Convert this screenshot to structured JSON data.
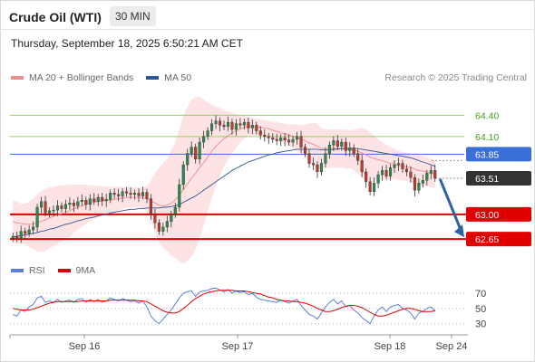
{
  "header": {
    "title": "Crude Oil (WTI)",
    "interval": "30 MIN",
    "timestamp": "Thursday, September 18, 2025 6:50:21 AM CET"
  },
  "legend": {
    "ma20_label": "MA 20 + Bollinger Bands",
    "ma50_label": "MA 50",
    "credit": "Research © 2025 Trading Central"
  },
  "rsi_legend": {
    "rsi_label": "RSI",
    "ma_label": "9MA"
  },
  "colors": {
    "ma20": "#f08b8b",
    "bollinger_fill": "#fde0e0",
    "ma50": "#2f5597",
    "candle_up": "#2a8c4a",
    "candle_down": "#c0392b",
    "level_green": "#9ccc65",
    "level_blue": "#3a6fd8",
    "level_red": "#e00000",
    "current_price": "#333333",
    "forecast_arrow": "#2e5fa8",
    "rsi": "#5b7fd8",
    "rsi_ma": "#e00000"
  },
  "chart_data": {
    "type": "candlestick",
    "symbol": "Crude Oil (WTI)",
    "interval": "30 MIN",
    "y_range": [
      62.55,
      64.75
    ],
    "x_ticks": [
      "Sep 16",
      "Sep 17",
      "Sep 18",
      "Sep 24"
    ],
    "levels": [
      {
        "value": 64.4,
        "label": "64.40",
        "kind": "resistance-minor"
      },
      {
        "value": 64.1,
        "label": "64.10",
        "kind": "resistance-minor"
      },
      {
        "value": 63.85,
        "label": "63.85",
        "kind": "pivot"
      },
      {
        "value": 63.51,
        "label": "63.51",
        "kind": "current"
      },
      {
        "value": 63.0,
        "label": "63.00",
        "kind": "support"
      },
      {
        "value": 62.65,
        "label": "62.65",
        "kind": "support"
      }
    ],
    "close_series": [
      62.69,
      62.67,
      62.76,
      62.73,
      62.78,
      62.82,
      63.1,
      63.18,
      63.02,
      63.05,
      63.06,
      63.12,
      63.08,
      63.14,
      63.16,
      63.12,
      63.18,
      63.2,
      63.14,
      63.22,
      63.18,
      63.24,
      63.19,
      63.21,
      63.3,
      63.28,
      63.26,
      63.32,
      63.3,
      63.28,
      63.3,
      63.26,
      63.31,
      63.22,
      63.0,
      62.88,
      62.76,
      62.82,
      62.9,
      63.0,
      63.1,
      63.42,
      63.7,
      63.86,
      63.95,
      63.78,
      64.02,
      64.1,
      64.18,
      64.28,
      64.32,
      64.26,
      64.24,
      64.3,
      64.2,
      64.28,
      64.26,
      64.3,
      64.22,
      64.26,
      64.18,
      64.12,
      64.1,
      64.08,
      64.06,
      64.04,
      64.08,
      64.05,
      64.02,
      64.06,
      64.1,
      63.95,
      63.86,
      63.72,
      63.7,
      63.6,
      63.72,
      63.86,
      63.98,
      64.04,
      63.96,
      64.02,
      63.9,
      63.94,
      63.86,
      63.76,
      63.6,
      63.46,
      63.32,
      63.44,
      63.56,
      63.62,
      63.54,
      63.66,
      63.7,
      63.72,
      63.64,
      63.6,
      63.52,
      63.34,
      63.44,
      63.48,
      63.58,
      63.62,
      63.51
    ],
    "ma20": [
      62.9,
      62.88,
      62.87,
      62.86,
      62.86,
      62.86,
      62.88,
      62.9,
      62.92,
      62.95,
      62.97,
      62.99,
      63.01,
      63.03,
      63.05,
      63.08,
      63.1,
      63.12,
      63.14,
      63.16,
      63.17,
      63.18,
      63.19,
      63.2,
      63.2,
      63.21,
      63.22,
      63.23,
      63.24,
      63.24,
      63.24,
      63.24,
      63.23,
      63.22,
      63.19,
      63.16,
      63.13,
      63.12,
      63.13,
      63.16,
      63.2,
      63.27,
      63.35,
      63.43,
      63.51,
      63.58,
      63.66,
      63.73,
      63.81,
      63.89,
      63.96,
      64.02,
      64.07,
      64.11,
      64.15,
      64.18,
      64.21,
      64.23,
      64.24,
      64.24,
      64.23,
      64.23,
      64.22,
      64.21,
      64.19,
      64.17,
      64.15,
      64.14,
      64.12,
      64.1,
      64.08,
      64.06,
      64.04,
      64.01,
      63.99,
      63.96,
      63.93,
      63.93,
      63.93,
      63.93,
      63.93,
      63.93,
      63.92,
      63.92,
      63.91,
      63.89,
      63.87,
      63.84,
      63.81,
      63.79,
      63.77,
      63.76,
      63.74,
      63.72,
      63.71,
      63.69,
      63.68,
      63.67,
      63.66,
      63.64,
      63.62,
      63.61,
      63.6,
      63.58,
      63.57
    ],
    "bollinger_upper_center_sample": [
      63.2,
      63.18,
      63.15,
      63.15,
      63.18,
      63.22,
      63.28,
      63.33,
      63.36,
      63.38,
      63.39,
      63.4,
      63.41,
      63.41,
      63.42,
      63.42,
      63.42,
      63.42,
      63.42,
      63.41,
      63.41,
      63.4,
      63.4,
      63.39,
      63.39,
      63.39,
      63.39,
      63.39,
      63.38,
      63.38,
      63.38,
      63.38,
      63.38,
      63.4,
      63.48,
      63.58,
      63.66,
      63.72,
      63.78,
      63.9,
      64.02,
      64.2,
      64.4,
      64.52,
      64.62,
      64.66,
      64.66,
      64.62,
      64.58,
      64.55,
      64.52,
      64.5,
      64.47,
      64.45,
      64.44,
      64.42,
      64.4,
      64.39,
      64.37,
      64.36,
      64.35,
      64.34,
      64.33,
      64.32,
      64.31,
      64.3,
      64.29,
      64.28,
      64.27,
      64.27,
      64.27,
      64.26,
      64.27,
      64.28,
      64.3,
      64.28,
      64.22,
      64.2,
      64.2,
      64.2,
      64.2,
      64.2,
      64.2,
      64.19,
      64.2,
      64.21,
      64.22,
      64.2,
      64.16,
      64.12,
      64.06,
      64.02,
      63.98,
      63.95,
      63.92,
      63.9,
      63.88,
      63.87,
      63.86,
      63.86,
      63.84,
      63.82,
      63.8,
      63.78,
      63.76
    ],
    "ma50": [
      62.68,
      62.69,
      62.7,
      62.71,
      62.72,
      62.73,
      62.74,
      62.76,
      62.77,
      62.79,
      62.8,
      62.82,
      62.84,
      62.86,
      62.87,
      62.89,
      62.91,
      62.92,
      62.94,
      62.95,
      62.96,
      62.98,
      62.99,
      63.0,
      63.02,
      63.03,
      63.04,
      63.05,
      63.06,
      63.07,
      63.07,
      63.08,
      63.08,
      63.09,
      63.09,
      63.09,
      63.09,
      63.1,
      63.1,
      63.11,
      63.12,
      63.14,
      63.17,
      63.2,
      63.23,
      63.26,
      63.3,
      63.34,
      63.38,
      63.42,
      63.46,
      63.5,
      63.54,
      63.58,
      63.62,
      63.65,
      63.68,
      63.71,
      63.74,
      63.76,
      63.78,
      63.8,
      63.82,
      63.84,
      63.85,
      63.87,
      63.88,
      63.89,
      63.9,
      63.91,
      63.92,
      63.92,
      63.92,
      63.92,
      63.92,
      63.92,
      63.91,
      63.91,
      63.91,
      63.92,
      63.92,
      63.93,
      63.93,
      63.93,
      63.93,
      63.93,
      63.92,
      63.91,
      63.9,
      63.89,
      63.88,
      63.87,
      63.86,
      63.85,
      63.84,
      63.83,
      63.82,
      63.81,
      63.8,
      63.78,
      63.76,
      63.74,
      63.72,
      63.7,
      63.68
    ],
    "forecast": {
      "from": 63.51,
      "to": 62.65
    },
    "rsi_panel": {
      "y_ticks": [
        70,
        50,
        30
      ],
      "y_range": [
        20,
        82
      ],
      "rsi": [
        42,
        40,
        48,
        46,
        52,
        55,
        64,
        66,
        58,
        60,
        58,
        62,
        58,
        60,
        61,
        58,
        62,
        63,
        58,
        62,
        59,
        62,
        58,
        60,
        64,
        62,
        60,
        63,
        61,
        59,
        60,
        57,
        60,
        52,
        40,
        34,
        30,
        36,
        42,
        48,
        56,
        64,
        70,
        72,
        73,
        66,
        72,
        73,
        74,
        76,
        77,
        74,
        72,
        75,
        70,
        73,
        71,
        72,
        68,
        70,
        65,
        62,
        61,
        60,
        59,
        58,
        61,
        59,
        57,
        60,
        62,
        54,
        48,
        42,
        40,
        36,
        44,
        52,
        58,
        62,
        56,
        60,
        52,
        54,
        48,
        44,
        38,
        34,
        30,
        40,
        48,
        52,
        46,
        52,
        54,
        55,
        50,
        48,
        44,
        36,
        44,
        46,
        50,
        52,
        47
      ],
      "rsi_ma": [
        50,
        49,
        48,
        48,
        48,
        49,
        51,
        53,
        55,
        57,
        58,
        59,
        59,
        59,
        59,
        59,
        59,
        60,
        60,
        60,
        60,
        60,
        60,
        60,
        61,
        61,
        61,
        61,
        61,
        61,
        61,
        60,
        60,
        59,
        56,
        53,
        50,
        47,
        45,
        44,
        44,
        46,
        50,
        54,
        59,
        63,
        66,
        69,
        71,
        72,
        73,
        74,
        74,
        74,
        74,
        73,
        73,
        73,
        72,
        71,
        70,
        69,
        67,
        65,
        64,
        62,
        61,
        60,
        60,
        59,
        59,
        58,
        57,
        55,
        53,
        50,
        48,
        46,
        46,
        47,
        49,
        51,
        53,
        54,
        54,
        53,
        51,
        48,
        45,
        42,
        40,
        40,
        41,
        43,
        45,
        47,
        49,
        50,
        50,
        49,
        47,
        46,
        46,
        46,
        47
      ]
    }
  }
}
